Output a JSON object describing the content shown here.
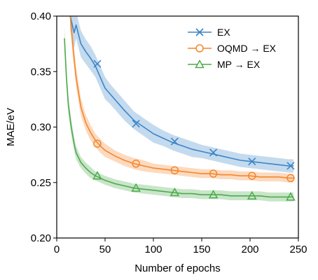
{
  "chart_data": {
    "type": "line",
    "title": "",
    "xlabel": "Number of epochs",
    "ylabel": "MAE/eV",
    "xlim": [
      0,
      250
    ],
    "ylim": [
      0.2,
      0.4
    ],
    "xticks": [
      0,
      50,
      100,
      150,
      200,
      250
    ],
    "yticks": [
      0.2,
      0.25,
      0.3,
      0.35,
      0.4
    ],
    "xtick_labels": [
      "0",
      "50",
      "100",
      "150",
      "200",
      "250"
    ],
    "ytick_labels": [
      "0.20",
      "0.25",
      "0.30",
      "0.35",
      "0.40"
    ],
    "grid": false,
    "legend_position": "top-right",
    "series": [
      {
        "name": "EX",
        "color": "#3d85c6",
        "marker": "x",
        "x": [
          14,
          18,
          20,
          25,
          30,
          35,
          40,
          45,
          50,
          55,
          60,
          70,
          80,
          90,
          100,
          110,
          120,
          130,
          140,
          150,
          160,
          170,
          180,
          190,
          200,
          210,
          220,
          230,
          240,
          245
        ],
        "values": [
          0.4,
          0.385,
          0.392,
          0.375,
          0.368,
          0.362,
          0.355,
          0.345,
          0.335,
          0.33,
          0.325,
          0.315,
          0.306,
          0.3,
          0.294,
          0.29,
          0.286,
          0.283,
          0.28,
          0.278,
          0.276,
          0.274,
          0.272,
          0.27,
          0.269,
          0.268,
          0.267,
          0.266,
          0.265,
          0.265
        ],
        "band": [
          0.012,
          0.014,
          0.012,
          0.012,
          0.011,
          0.011,
          0.01,
          0.01,
          0.01,
          0.009,
          0.009,
          0.009,
          0.008,
          0.008,
          0.008,
          0.007,
          0.007,
          0.007,
          0.007,
          0.006,
          0.006,
          0.006,
          0.006,
          0.006,
          0.006,
          0.006,
          0.006,
          0.006,
          0.006,
          0.006
        ],
        "marker_x": [
          42,
          82,
          122,
          162,
          202,
          242
        ],
        "marker_values": [
          0.357,
          0.303,
          0.287,
          0.277,
          0.269,
          0.265
        ]
      },
      {
        "name": "OQMD → EX",
        "color": "#f5862b",
        "marker": "o",
        "x": [
          14,
          17,
          20,
          25,
          30,
          35,
          40,
          45,
          50,
          60,
          70,
          80,
          90,
          100,
          110,
          120,
          130,
          140,
          150,
          160,
          170,
          180,
          190,
          200,
          210,
          220,
          230,
          240,
          245
        ],
        "values": [
          0.4,
          0.37,
          0.345,
          0.318,
          0.304,
          0.295,
          0.288,
          0.283,
          0.279,
          0.274,
          0.27,
          0.267,
          0.265,
          0.263,
          0.262,
          0.261,
          0.26,
          0.259,
          0.258,
          0.258,
          0.257,
          0.257,
          0.256,
          0.256,
          0.255,
          0.255,
          0.255,
          0.254,
          0.254
        ],
        "band": [
          0.012,
          0.01,
          0.009,
          0.008,
          0.007,
          0.007,
          0.006,
          0.006,
          0.006,
          0.005,
          0.005,
          0.005,
          0.005,
          0.004,
          0.004,
          0.004,
          0.004,
          0.004,
          0.004,
          0.004,
          0.004,
          0.004,
          0.004,
          0.004,
          0.004,
          0.004,
          0.004,
          0.004,
          0.004
        ],
        "marker_x": [
          42,
          82,
          122,
          162,
          202,
          242
        ],
        "marker_values": [
          0.285,
          0.267,
          0.261,
          0.258,
          0.256,
          0.254
        ]
      },
      {
        "name": "MP → EX",
        "color": "#4daa4d",
        "marker": "^",
        "x": [
          8,
          10,
          12,
          15,
          18,
          20,
          25,
          30,
          35,
          40,
          45,
          50,
          60,
          70,
          80,
          90,
          100,
          110,
          120,
          130,
          140,
          150,
          160,
          170,
          180,
          190,
          200,
          210,
          220,
          230,
          240,
          245
        ],
        "values": [
          0.38,
          0.345,
          0.32,
          0.3,
          0.285,
          0.277,
          0.268,
          0.263,
          0.259,
          0.256,
          0.254,
          0.252,
          0.249,
          0.247,
          0.245,
          0.244,
          0.243,
          0.242,
          0.241,
          0.24,
          0.24,
          0.239,
          0.239,
          0.239,
          0.238,
          0.238,
          0.238,
          0.238,
          0.237,
          0.237,
          0.237,
          0.237
        ],
        "band": [
          0.01,
          0.009,
          0.008,
          0.007,
          0.006,
          0.006,
          0.005,
          0.005,
          0.005,
          0.004,
          0.004,
          0.004,
          0.004,
          0.004,
          0.004,
          0.004,
          0.004,
          0.004,
          0.004,
          0.004,
          0.004,
          0.004,
          0.004,
          0.004,
          0.004,
          0.004,
          0.004,
          0.004,
          0.004,
          0.004,
          0.004,
          0.004
        ],
        "marker_x": [
          42,
          82,
          122,
          162,
          202,
          242
        ],
        "marker_values": [
          0.256,
          0.245,
          0.241,
          0.239,
          0.238,
          0.237
        ]
      }
    ]
  }
}
